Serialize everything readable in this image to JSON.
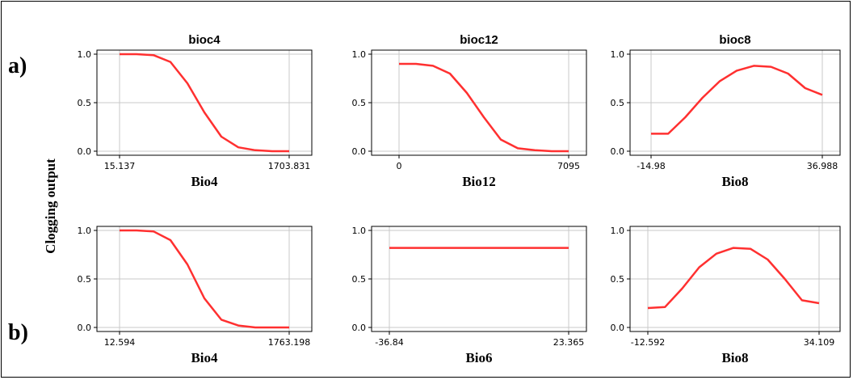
{
  "row_labels": [
    "a)",
    "b)"
  ],
  "ylabel": "Clogging output",
  "colors": {
    "line": "#ff3030",
    "grid": "#c8c8c8",
    "plot_bg": "#ffffff",
    "axis": "#000000"
  },
  "chart_data": [
    {
      "type": "line",
      "title": "bioc4",
      "xlabel": "Bio4",
      "xticks": [
        "15.137",
        "1703.831"
      ],
      "yticks": [
        "0.0",
        "0.5",
        "1.0"
      ],
      "ylim": [
        0,
        1
      ],
      "x": [
        0,
        0.1,
        0.2,
        0.3,
        0.4,
        0.5,
        0.6,
        0.7,
        0.8,
        0.9,
        1
      ],
      "y": [
        1,
        1,
        0.99,
        0.92,
        0.7,
        0.4,
        0.15,
        0.04,
        0.01,
        0,
        0
      ]
    },
    {
      "type": "line",
      "title": "bioc12",
      "xlabel": "Bio12",
      "xticks": [
        "0",
        "7095"
      ],
      "yticks": [
        "0.0",
        "0.5",
        "1.0"
      ],
      "ylim": [
        0,
        1
      ],
      "x": [
        0,
        0.1,
        0.2,
        0.3,
        0.4,
        0.5,
        0.6,
        0.7,
        0.8,
        0.9,
        1
      ],
      "y": [
        0.9,
        0.9,
        0.88,
        0.8,
        0.6,
        0.35,
        0.12,
        0.03,
        0.01,
        0,
        0
      ]
    },
    {
      "type": "line",
      "title": "bioc8",
      "xlabel": "Bio8",
      "xticks": [
        "-14.98",
        "36.988"
      ],
      "yticks": [
        "0.0",
        "0.5",
        "1.0"
      ],
      "ylim": [
        0,
        1
      ],
      "x": [
        0,
        0.1,
        0.2,
        0.3,
        0.4,
        0.5,
        0.6,
        0.7,
        0.8,
        0.9,
        1
      ],
      "y": [
        0.18,
        0.18,
        0.35,
        0.55,
        0.72,
        0.83,
        0.88,
        0.87,
        0.8,
        0.65,
        0.58
      ]
    },
    {
      "type": "line",
      "title": "",
      "xlabel": "Bio4",
      "xticks": [
        "12.594",
        "1763.198"
      ],
      "yticks": [
        "0.0",
        "0.5",
        "1.0"
      ],
      "ylim": [
        0,
        1
      ],
      "x": [
        0,
        0.1,
        0.2,
        0.3,
        0.4,
        0.5,
        0.6,
        0.7,
        0.8,
        0.9,
        1
      ],
      "y": [
        1,
        1,
        0.99,
        0.9,
        0.65,
        0.3,
        0.08,
        0.02,
        0,
        0,
        0
      ]
    },
    {
      "type": "line",
      "title": "",
      "xlabel": "Bio6",
      "xticks": [
        "-36.84",
        "23.365"
      ],
      "yticks": [
        "0.0",
        "0.5",
        "1.0"
      ],
      "ylim": [
        0,
        1
      ],
      "x": [
        0,
        1
      ],
      "y": [
        0.82,
        0.82
      ]
    },
    {
      "type": "line",
      "title": "",
      "xlabel": "Bio8",
      "xticks": [
        "-12.592",
        "34.109"
      ],
      "yticks": [
        "0.0",
        "0.5",
        "1.0"
      ],
      "ylim": [
        0,
        1
      ],
      "x": [
        0,
        0.1,
        0.2,
        0.3,
        0.4,
        0.5,
        0.6,
        0.7,
        0.8,
        0.9,
        1
      ],
      "y": [
        0.2,
        0.21,
        0.4,
        0.62,
        0.76,
        0.82,
        0.81,
        0.7,
        0.5,
        0.28,
        0.25
      ]
    }
  ]
}
